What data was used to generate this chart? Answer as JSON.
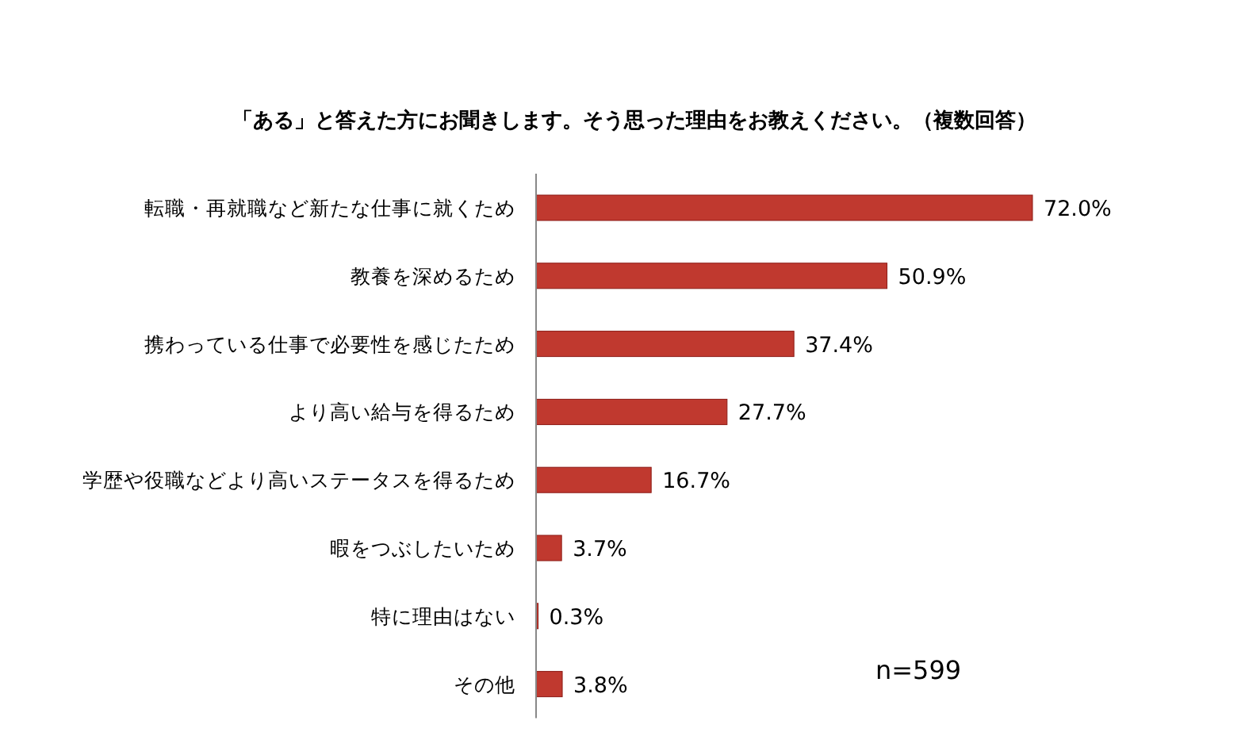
{
  "chart_data": {
    "type": "bar",
    "orientation": "horizontal",
    "title": "「ある」と答えた方にお聞きします。そう思った理由をお教えください。（複数回答）",
    "categories": [
      "転職・再就職など新たな仕事に就くため",
      "教養を深めるため",
      "携わっている仕事で必要性を感じたため",
      "より高い給与を得るため",
      "学歴や役職などより高いステータスを得るため",
      "暇をつぶしたいため",
      "特に理由はない",
      "その他"
    ],
    "values": [
      72.0,
      50.9,
      37.4,
      27.7,
      16.7,
      3.7,
      0.3,
      3.8
    ],
    "value_labels": [
      "72.0%",
      "50.9%",
      "37.4%",
      "27.7%",
      "16.7%",
      "3.7%",
      "0.3%",
      "3.8%"
    ],
    "color": "#c0392f",
    "annotations": [
      "n=599"
    ]
  }
}
